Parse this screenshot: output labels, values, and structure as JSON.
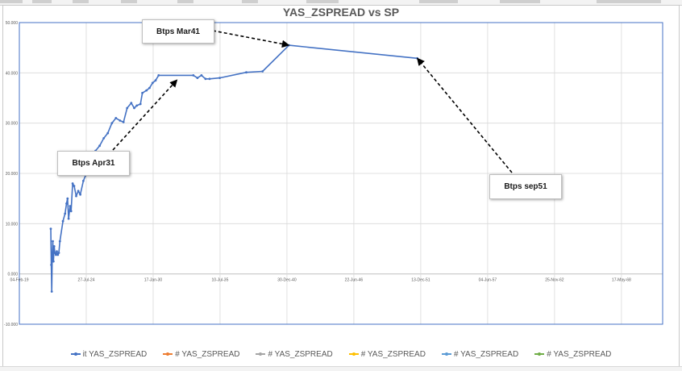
{
  "chart_data": {
    "type": "line",
    "title": "YAS_ZSPREAD vs SP",
    "ylim": [
      -10000,
      50000
    ],
    "y_ticks": [
      "-10.000",
      "0.000",
      "10.000",
      "20.000",
      "30.000",
      "40.000",
      "50.000"
    ],
    "y_tick_values": [
      -10000,
      0,
      10000,
      20000,
      30000,
      40000,
      50000
    ],
    "xlim": [
      "2019-02-04",
      "2071-10-01"
    ],
    "x_ticks": [
      "04-Feb-19",
      "27-Jul-24",
      "17-Jan-30",
      "10-Jul-35",
      "30-Dec-40",
      "22-Jun-46",
      "13-Dec-51",
      "04-Jun-57",
      "25-Nov-62",
      "17-May-68"
    ],
    "x_tick_dates": [
      "2019-02-04",
      "2024-07-27",
      "2030-01-17",
      "2035-07-10",
      "2040-12-30",
      "2046-06-22",
      "2051-12-13",
      "2057-06-04",
      "2062-11-25",
      "2068-05-17"
    ],
    "grid": true,
    "legend_position": "bottom",
    "series": [
      {
        "name": "it YAS_ZSPREAD",
        "color": "#4472c4",
        "points": [
          [
            "2021-09-01",
            9000
          ],
          [
            "2021-09-15",
            1800
          ],
          [
            "2021-10-01",
            -3500
          ],
          [
            "2021-10-15",
            3500
          ],
          [
            "2021-11-01",
            6500
          ],
          [
            "2021-11-20",
            2500
          ],
          [
            "2021-12-10",
            5500
          ],
          [
            "2022-01-01",
            4200
          ],
          [
            "2022-02-01",
            3800
          ],
          [
            "2022-03-01",
            4500
          ],
          [
            "2022-04-01",
            3800
          ],
          [
            "2022-05-01",
            4200
          ],
          [
            "2022-06-01",
            6500
          ],
          [
            "2022-09-01",
            10500
          ],
          [
            "2022-11-01",
            12000
          ],
          [
            "2022-12-15",
            14000
          ],
          [
            "2023-01-15",
            15000
          ],
          [
            "2023-02-15",
            11000
          ],
          [
            "2023-04-01",
            13500
          ],
          [
            "2023-05-01",
            12500
          ],
          [
            "2023-06-15",
            18000
          ],
          [
            "2023-08-01",
            17500
          ],
          [
            "2023-10-01",
            15500
          ],
          [
            "2023-12-01",
            16500
          ],
          [
            "2024-02-01",
            15800
          ],
          [
            "2024-05-01",
            18500
          ],
          [
            "2024-08-01",
            20000
          ],
          [
            "2024-11-01",
            21000
          ],
          [
            "2025-02-01",
            22500
          ],
          [
            "2025-05-01",
            24500
          ],
          [
            "2025-09-01",
            25500
          ],
          [
            "2026-01-01",
            27000
          ],
          [
            "2026-05-01",
            28000
          ],
          [
            "2026-09-01",
            30000
          ],
          [
            "2027-01-01",
            31000
          ],
          [
            "2027-05-01",
            30500
          ],
          [
            "2027-08-15",
            30200
          ],
          [
            "2027-12-01",
            33000
          ],
          [
            "2028-04-01",
            34000
          ],
          [
            "2028-07-01",
            33000
          ],
          [
            "2028-09-15",
            33500
          ],
          [
            "2029-01-01",
            33800
          ],
          [
            "2029-03-01",
            36000
          ],
          [
            "2029-07-01",
            36500
          ],
          [
            "2029-10-01",
            37000
          ],
          [
            "2030-01-01",
            38000
          ],
          [
            "2030-04-01",
            38500
          ],
          [
            "2030-07-01",
            39500
          ],
          [
            "2033-05-01",
            39500
          ],
          [
            "2033-09-01",
            39000
          ],
          [
            "2034-01-01",
            39500
          ],
          [
            "2034-05-01",
            38800
          ],
          [
            "2034-09-01",
            38800
          ],
          [
            "2035-07-01",
            39000
          ],
          [
            "2037-09-01",
            40100
          ],
          [
            "2039-01-01",
            40300
          ],
          [
            "2041-03-01",
            45500
          ],
          [
            "2051-09-01",
            42900
          ]
        ]
      },
      {
        "name": "# YAS_ZSPREAD",
        "color": "#ed7d31",
        "points": []
      },
      {
        "name": "# YAS_ZSPREAD",
        "color": "#a5a5a5",
        "points": []
      },
      {
        "name": "# YAS_ZSPREAD",
        "color": "#ffc000",
        "points": []
      },
      {
        "name": "# YAS_ZSPREAD",
        "color": "#5b9bd5",
        "points": []
      },
      {
        "name": "# YAS_ZSPREAD",
        "color": "#70ad47",
        "points": []
      }
    ],
    "annotations": [
      {
        "text": "Btps Mar41",
        "target": [
          "2041-03-01",
          45500
        ]
      },
      {
        "text": "Btps Apr31",
        "target": [
          "2032-01-01",
          38600
        ]
      },
      {
        "text": "Btps sep51",
        "target": [
          "2051-09-01",
          42900
        ]
      }
    ]
  }
}
